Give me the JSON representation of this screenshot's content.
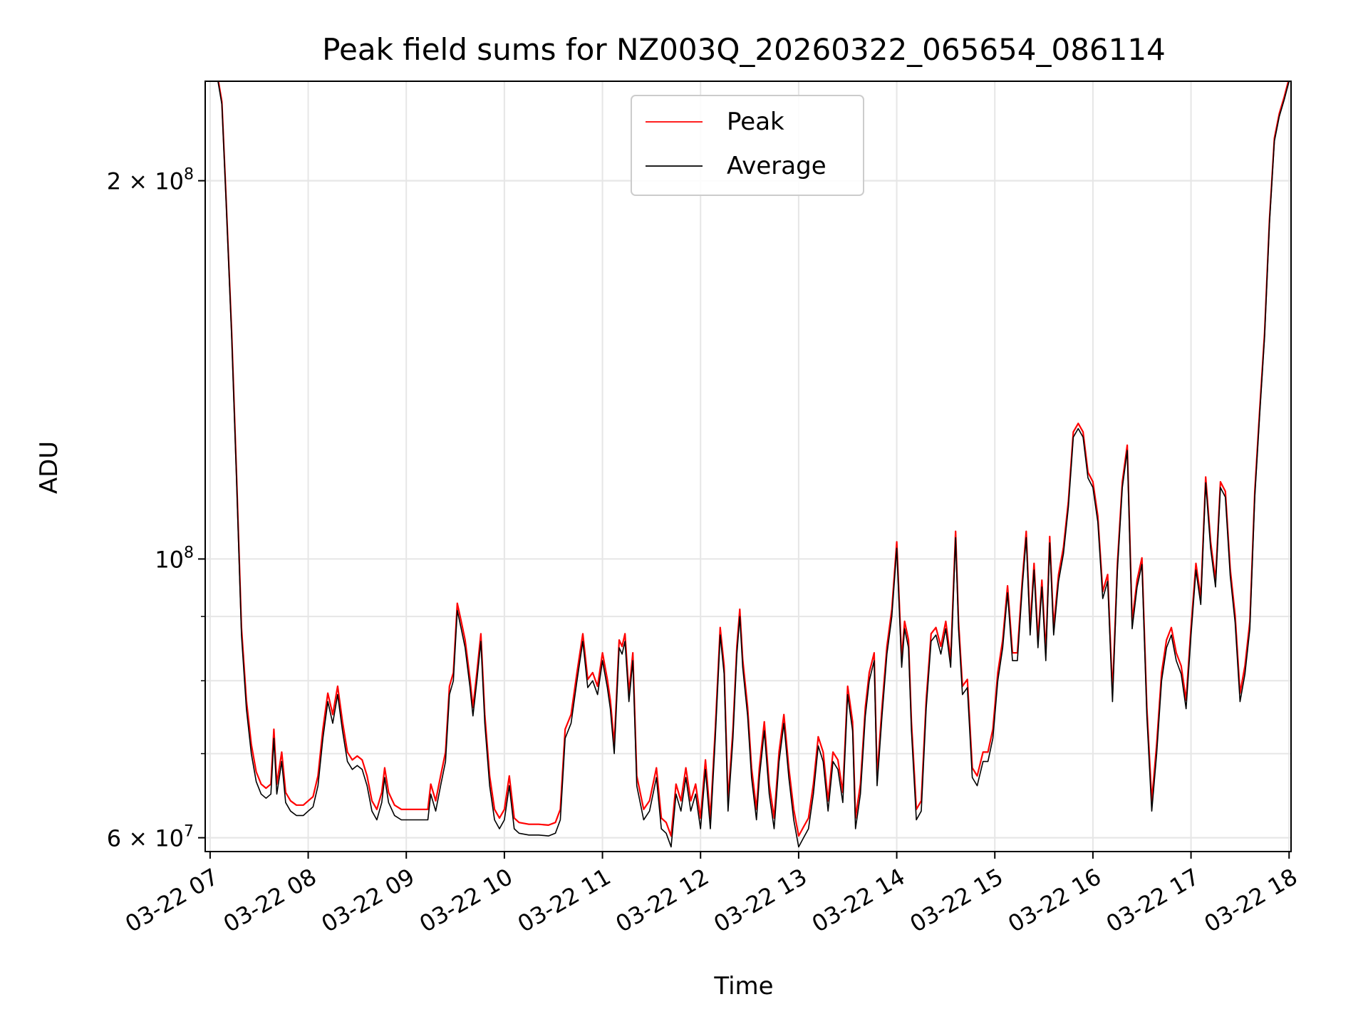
{
  "chart_data": {
    "type": "line",
    "title": "Peak field sums for NZ003Q_20260322_065654_086114",
    "xlabel": "Time",
    "ylabel": "ADU",
    "yscale": "log",
    "ylim": [
      58500000,
      240000000
    ],
    "xlim": [
      6.95,
      18.02
    ],
    "x_ticks": [
      {
        "value": 7,
        "label": "03-22 07"
      },
      {
        "value": 8,
        "label": "03-22 08"
      },
      {
        "value": 9,
        "label": "03-22 09"
      },
      {
        "value": 10,
        "label": "03-22 10"
      },
      {
        "value": 11,
        "label": "03-22 11"
      },
      {
        "value": 12,
        "label": "03-22 12"
      },
      {
        "value": 13,
        "label": "03-22 13"
      },
      {
        "value": 14,
        "label": "03-22 14"
      },
      {
        "value": 15,
        "label": "03-22 15"
      },
      {
        "value": 16,
        "label": "03-22 16"
      },
      {
        "value": 17,
        "label": "03-22 17"
      },
      {
        "value": 18,
        "label": "03-22 18"
      }
    ],
    "y_major_ticks": [
      {
        "value": 100000000,
        "base": "10",
        "exp": "8",
        "mant": ""
      },
      {
        "value": 200000000,
        "base": "10",
        "exp": "8",
        "mant": "2"
      },
      {
        "value": 60000000,
        "base": "10",
        "exp": "7",
        "mant": "6"
      }
    ],
    "y_minor_gridlines": [
      60000000,
      70000000,
      80000000,
      90000000,
      200000000
    ],
    "times_mult": "×",
    "grid": true,
    "legend_position": "top-center",
    "series": [
      {
        "name": "Peak",
        "color": "#ff0000"
      },
      {
        "name": "Average",
        "color": "#000000"
      }
    ],
    "peak_offset_millions": 1.2,
    "average_points": [
      [
        7.08,
        240
      ],
      [
        7.12,
        230
      ],
      [
        7.16,
        195
      ],
      [
        7.22,
        150
      ],
      [
        7.27,
        115
      ],
      [
        7.32,
        87
      ],
      [
        7.37,
        76
      ],
      [
        7.42,
        70
      ],
      [
        7.47,
        66.5
      ],
      [
        7.52,
        65
      ],
      [
        7.57,
        64.5
      ],
      [
        7.62,
        65
      ],
      [
        7.65,
        72
      ],
      [
        7.68,
        65
      ],
      [
        7.73,
        69
      ],
      [
        7.77,
        64
      ],
      [
        7.82,
        63
      ],
      [
        7.88,
        62.5
      ],
      [
        7.95,
        62.5
      ],
      [
        8.0,
        63
      ],
      [
        8.05,
        63.5
      ],
      [
        8.1,
        66
      ],
      [
        8.15,
        72
      ],
      [
        8.2,
        77
      ],
      [
        8.25,
        74
      ],
      [
        8.3,
        78
      ],
      [
        8.35,
        73
      ],
      [
        8.4,
        69
      ],
      [
        8.45,
        68
      ],
      [
        8.5,
        68.5
      ],
      [
        8.55,
        68
      ],
      [
        8.6,
        66
      ],
      [
        8.65,
        63
      ],
      [
        8.7,
        62
      ],
      [
        8.75,
        64
      ],
      [
        8.78,
        67
      ],
      [
        8.82,
        64
      ],
      [
        8.88,
        62.5
      ],
      [
        8.95,
        62
      ],
      [
        9.05,
        62
      ],
      [
        9.15,
        62
      ],
      [
        9.22,
        62
      ],
      [
        9.25,
        65
      ],
      [
        9.3,
        63
      ],
      [
        9.35,
        66
      ],
      [
        9.4,
        69
      ],
      [
        9.44,
        78
      ],
      [
        9.48,
        80
      ],
      [
        9.52,
        91
      ],
      [
        9.56,
        88
      ],
      [
        9.6,
        85
      ],
      [
        9.65,
        79
      ],
      [
        9.68,
        75
      ],
      [
        9.72,
        80
      ],
      [
        9.76,
        86
      ],
      [
        9.8,
        74
      ],
      [
        9.85,
        66
      ],
      [
        9.9,
        62
      ],
      [
        9.95,
        61
      ],
      [
        10.0,
        62
      ],
      [
        10.05,
        66
      ],
      [
        10.1,
        61
      ],
      [
        10.15,
        60.5
      ],
      [
        10.25,
        60.3
      ],
      [
        10.35,
        60.3
      ],
      [
        10.45,
        60.2
      ],
      [
        10.52,
        60.5
      ],
      [
        10.57,
        62
      ],
      [
        10.62,
        72
      ],
      [
        10.68,
        74
      ],
      [
        10.74,
        80
      ],
      [
        10.8,
        86
      ],
      [
        10.85,
        79
      ],
      [
        10.9,
        80
      ],
      [
        10.95,
        78
      ],
      [
        11.0,
        83
      ],
      [
        11.05,
        79
      ],
      [
        11.08,
        76
      ],
      [
        11.12,
        70
      ],
      [
        11.17,
        85
      ],
      [
        11.2,
        84
      ],
      [
        11.23,
        86
      ],
      [
        11.27,
        77
      ],
      [
        11.31,
        83
      ],
      [
        11.35,
        66
      ],
      [
        11.42,
        62
      ],
      [
        11.48,
        63
      ],
      [
        11.55,
        67
      ],
      [
        11.6,
        61
      ],
      [
        11.65,
        60.5
      ],
      [
        11.7,
        59
      ],
      [
        11.75,
        65
      ],
      [
        11.8,
        63
      ],
      [
        11.85,
        67
      ],
      [
        11.9,
        63
      ],
      [
        11.95,
        65
      ],
      [
        12.0,
        61
      ],
      [
        12.05,
        68
      ],
      [
        12.1,
        61
      ],
      [
        12.15,
        72
      ],
      [
        12.2,
        87
      ],
      [
        12.24,
        81
      ],
      [
        12.28,
        63
      ],
      [
        12.33,
        72
      ],
      [
        12.37,
        84
      ],
      [
        12.4,
        90
      ],
      [
        12.43,
        82
      ],
      [
        12.48,
        75
      ],
      [
        12.52,
        67
      ],
      [
        12.57,
        62
      ],
      [
        12.6,
        67
      ],
      [
        12.65,
        73
      ],
      [
        12.7,
        65
      ],
      [
        12.75,
        61
      ],
      [
        12.8,
        69
      ],
      [
        12.85,
        74
      ],
      [
        12.9,
        67
      ],
      [
        12.95,
        62
      ],
      [
        13.0,
        59
      ],
      [
        13.05,
        60
      ],
      [
        13.1,
        61
      ],
      [
        13.15,
        65
      ],
      [
        13.2,
        71
      ],
      [
        13.25,
        69
      ],
      [
        13.3,
        63
      ],
      [
        13.35,
        69
      ],
      [
        13.4,
        68
      ],
      [
        13.45,
        64
      ],
      [
        13.5,
        78
      ],
      [
        13.55,
        73
      ],
      [
        13.58,
        61
      ],
      [
        13.63,
        65
      ],
      [
        13.68,
        75
      ],
      [
        13.72,
        80
      ],
      [
        13.77,
        83
      ],
      [
        13.8,
        66
      ],
      [
        13.85,
        75
      ],
      [
        13.9,
        84
      ],
      [
        13.95,
        90
      ],
      [
        14.0,
        102
      ],
      [
        14.05,
        82
      ],
      [
        14.08,
        88
      ],
      [
        14.12,
        85
      ],
      [
        14.15,
        73
      ],
      [
        14.2,
        62
      ],
      [
        14.25,
        63
      ],
      [
        14.3,
        76
      ],
      [
        14.35,
        86
      ],
      [
        14.4,
        87
      ],
      [
        14.45,
        84
      ],
      [
        14.5,
        88
      ],
      [
        14.55,
        82
      ],
      [
        14.6,
        104
      ],
      [
        14.63,
        88
      ],
      [
        14.67,
        78
      ],
      [
        14.72,
        79
      ],
      [
        14.77,
        67
      ],
      [
        14.82,
        66
      ],
      [
        14.88,
        69
      ],
      [
        14.93,
        69
      ],
      [
        14.98,
        72
      ],
      [
        15.03,
        80
      ],
      [
        15.08,
        85
      ],
      [
        15.13,
        94
      ],
      [
        15.18,
        83
      ],
      [
        15.23,
        83
      ],
      [
        15.28,
        95
      ],
      [
        15.32,
        104
      ],
      [
        15.36,
        87
      ],
      [
        15.4,
        98
      ],
      [
        15.44,
        85
      ],
      [
        15.48,
        95
      ],
      [
        15.52,
        83
      ],
      [
        15.56,
        103
      ],
      [
        15.6,
        87
      ],
      [
        15.65,
        96
      ],
      [
        15.7,
        101
      ],
      [
        15.75,
        110
      ],
      [
        15.8,
        125
      ],
      [
        15.85,
        127
      ],
      [
        15.9,
        125
      ],
      [
        15.95,
        116
      ],
      [
        16.0,
        114
      ],
      [
        16.05,
        107
      ],
      [
        16.1,
        93
      ],
      [
        16.15,
        96
      ],
      [
        16.2,
        77
      ],
      [
        16.25,
        98
      ],
      [
        16.3,
        114
      ],
      [
        16.35,
        122
      ],
      [
        16.4,
        88
      ],
      [
        16.45,
        95
      ],
      [
        16.5,
        99
      ],
      [
        16.55,
        75
      ],
      [
        16.6,
        63
      ],
      [
        16.65,
        70
      ],
      [
        16.7,
        80
      ],
      [
        16.75,
        85
      ],
      [
        16.8,
        87
      ],
      [
        16.85,
        83
      ],
      [
        16.9,
        81
      ],
      [
        16.95,
        76
      ],
      [
        17.0,
        87
      ],
      [
        17.05,
        98
      ],
      [
        17.1,
        92
      ],
      [
        17.15,
        115
      ],
      [
        17.2,
        102
      ],
      [
        17.25,
        95
      ],
      [
        17.3,
        114
      ],
      [
        17.35,
        112
      ],
      [
        17.4,
        97
      ],
      [
        17.45,
        89
      ],
      [
        17.5,
        77
      ],
      [
        17.55,
        81
      ],
      [
        17.6,
        88
      ],
      [
        17.65,
        112
      ],
      [
        17.7,
        130
      ],
      [
        17.75,
        150
      ],
      [
        17.8,
        185
      ],
      [
        17.85,
        215
      ],
      [
        17.9,
        225
      ],
      [
        17.95,
        232
      ],
      [
        18.0,
        240
      ]
    ]
  }
}
